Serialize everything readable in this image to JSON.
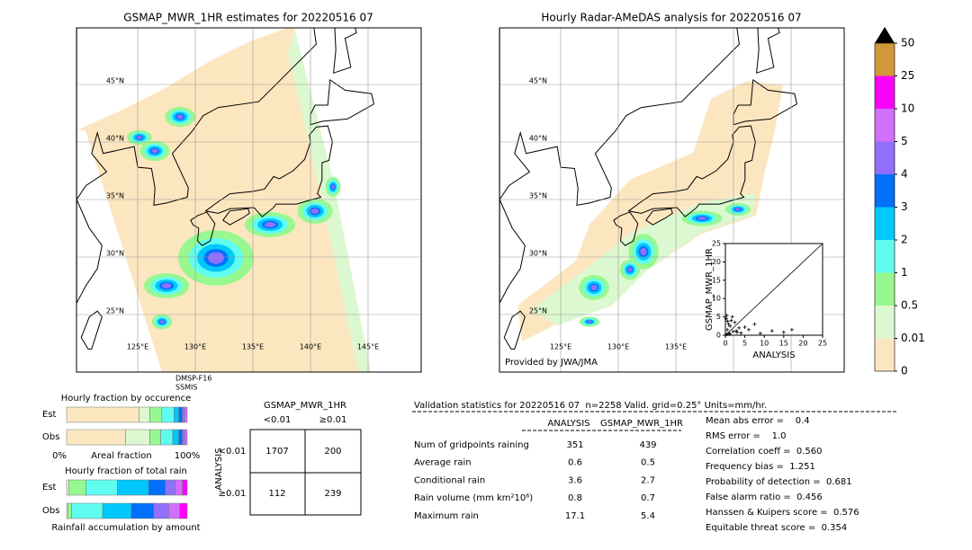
{
  "map_left": {
    "title": "GSMAP_MWR_1HR estimates for 20220516 07",
    "lat_labels": [
      "45°N",
      "40°N",
      "35°N",
      "30°N",
      "25°N"
    ],
    "lon_labels": [
      "125°E",
      "130°E",
      "135°E",
      "140°E",
      "145°E"
    ],
    "sensor_note": [
      "DMSP-F16",
      "SSMIS"
    ]
  },
  "map_right": {
    "title": "Hourly Radar-AMeDAS analysis for 20220516 07",
    "lat_labels": [
      "45°N",
      "40°N",
      "35°N",
      "30°N",
      "25°N"
    ],
    "lon_labels": [
      "125°E",
      "130°E",
      "135°E"
    ],
    "credit": "Provided by JWA/JMA"
  },
  "scatter": {
    "type": "scatter",
    "xlabel": "ANALYSIS",
    "ylabel": "GSMAP_MWR_1HR",
    "xlim": [
      0,
      25
    ],
    "ylim": [
      0,
      25
    ],
    "xticks": [
      0,
      5,
      10,
      15,
      20,
      25
    ],
    "yticks": [
      0,
      5,
      10,
      15,
      20,
      25
    ],
    "x": [
      0.3,
      0.5,
      0.8,
      1,
      1.2,
      1.5,
      2,
      2.4,
      3,
      3.5,
      0.2,
      0.6,
      1.8,
      2.8,
      4,
      5,
      6,
      7.5,
      9,
      12,
      15,
      17.1,
      0.4,
      1.1
    ],
    "y": [
      0.2,
      1.5,
      3,
      0.5,
      2.5,
      4,
      1,
      3.5,
      0.8,
      2,
      4.5,
      3.8,
      5,
      1.2,
      0.6,
      2.2,
      1.5,
      3,
      0.5,
      1.2,
      0.8,
      1.5,
      5.4,
      0.3
    ]
  },
  "colorbar": {
    "levels": [
      0,
      0.01,
      0.5,
      1,
      2,
      3,
      4,
      5,
      10,
      25,
      50
    ],
    "colors": [
      "#fce6c0",
      "#dcf8d0",
      "#98f890",
      "#60fcf0",
      "#00c8fc",
      "#0070fc",
      "#9070fc",
      "#d070fc",
      "#fc00fc",
      "#d09838"
    ],
    "over_color": "#000000"
  },
  "occurrence": {
    "title": "Hourly fraction by occurence",
    "axis_labels": [
      "0%",
      "Areal fraction",
      "100%"
    ],
    "rows": [
      {
        "label": "Est",
        "values": [
          60,
          9,
          10,
          10,
          4,
          3,
          2,
          2
        ]
      },
      {
        "label": "Obs",
        "values": [
          49,
          20,
          9,
          10,
          5,
          3,
          2,
          2
        ]
      }
    ]
  },
  "total_rain": {
    "title": "Hourly fraction of total rain",
    "footer": "Rainfall accumulation by amount",
    "rows": [
      {
        "label": "Est",
        "values": [
          2,
          14,
          26,
          26,
          14,
          8,
          6,
          4
        ]
      },
      {
        "label": "Obs",
        "values": [
          1,
          3,
          25,
          23,
          18,
          12,
          9,
          6
        ]
      }
    ]
  },
  "contingency": {
    "title": "GSMAP_MWR_1HR",
    "col_labels": [
      "<0.01",
      "≥0.01"
    ],
    "row_title": "ANALYSIS",
    "row_labels": [
      "<0.01",
      "≥0.01"
    ],
    "cells": [
      [
        1707,
        200
      ],
      [
        112,
        239
      ]
    ]
  },
  "validation": {
    "header": "Validation statistics for 20220516 07  n=2258 Valid. grid=0.25° Units=mm/hr.",
    "columns": [
      "ANALYSIS",
      "GSMAP_MWR_1HR"
    ],
    "rows": [
      [
        "Num of gridpoints raining",
        351,
        439
      ],
      [
        "Average rain",
        0.6,
        0.5
      ],
      [
        "Conditional rain",
        3.6,
        2.7
      ],
      [
        "Rain volume (mm km²10⁶)",
        0.8,
        0.7
      ],
      [
        "Maximum rain",
        17.1,
        5.4
      ]
    ],
    "scores": [
      "Mean abs error =    0.4",
      "RMS error =    1.0",
      "Correlation coeff =  0.560",
      "Frequency bias =  1.251",
      "Probability of detection =  0.681",
      "False alarm ratio =  0.456",
      "Hanssen & Kuipers score =  0.576",
      "Equitable threat score =  0.354"
    ]
  }
}
